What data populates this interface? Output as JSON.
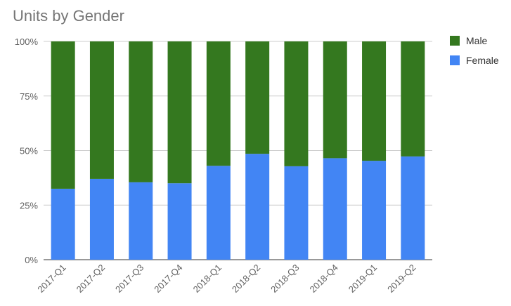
{
  "chart_data": {
    "type": "bar",
    "stacked": true,
    "normalized": true,
    "title": "Units by Gender",
    "categories": [
      "2017-Q1",
      "2017-Q2",
      "2017-Q3",
      "2017-Q4",
      "2018-Q1",
      "2018-Q2",
      "2018-Q3",
      "2018-Q4",
      "2019-Q1",
      "2019-Q2"
    ],
    "series": [
      {
        "name": "Female",
        "color": "#4285f4",
        "values": [
          32.5,
          37,
          35.5,
          35,
          43,
          48.5,
          42.8,
          46.5,
          45.3,
          47.3
        ]
      },
      {
        "name": "Male",
        "color": "#34781f",
        "values": [
          67.5,
          63,
          64.5,
          65,
          57,
          51.5,
          57.2,
          53.5,
          54.7,
          52.7
        ]
      }
    ],
    "ylim": [
      0,
      100
    ],
    "yticks": [
      "0%",
      "25%",
      "50%",
      "75%",
      "100%"
    ],
    "grid": true,
    "legend": "right"
  }
}
